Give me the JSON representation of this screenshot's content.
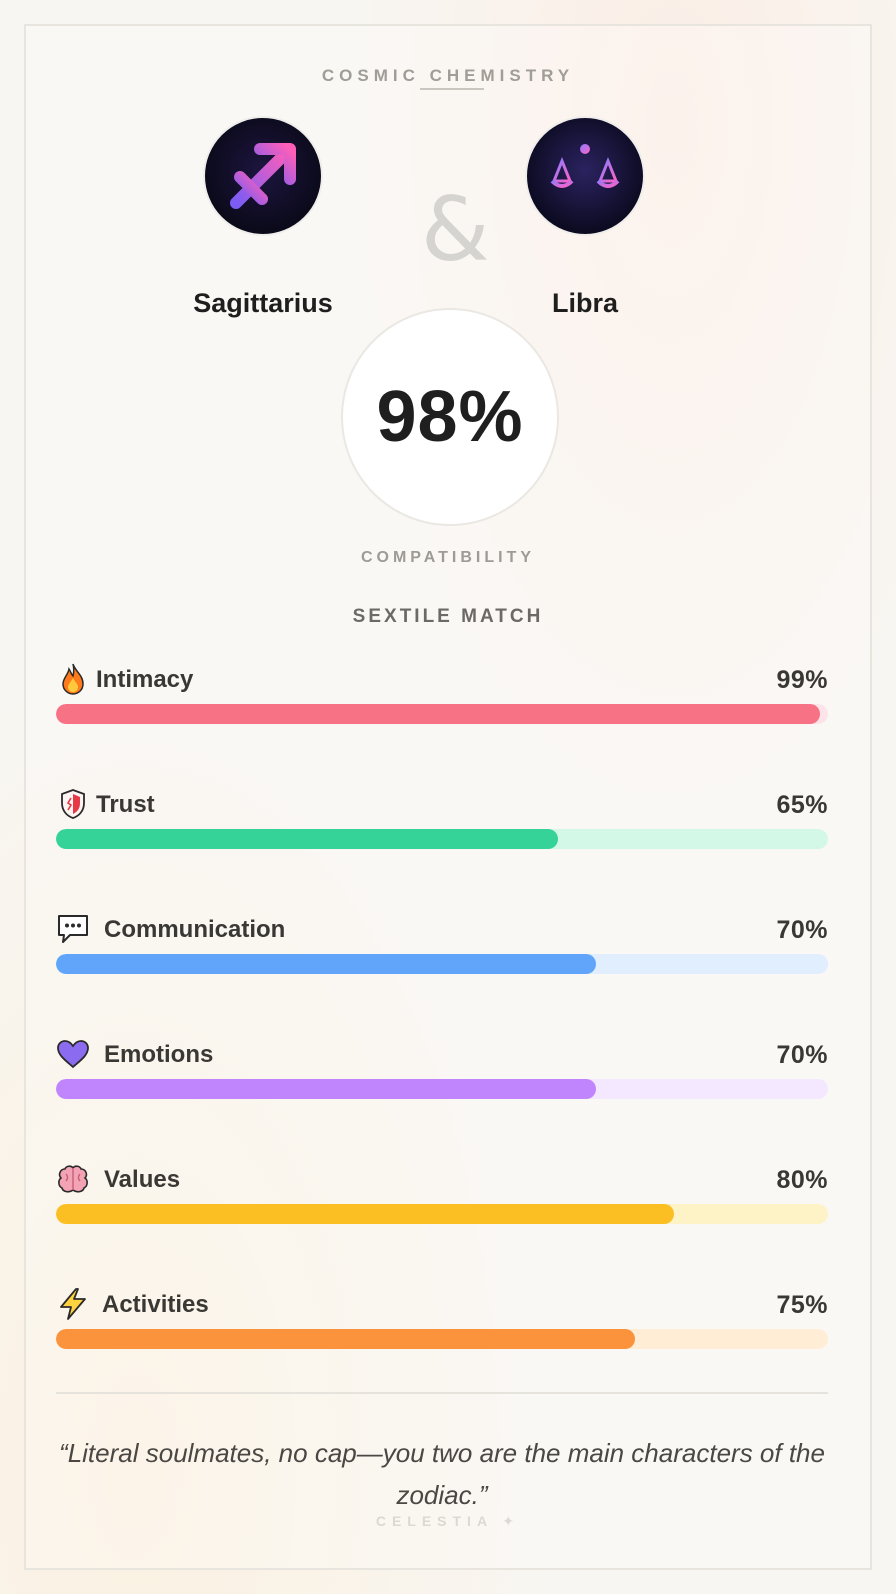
{
  "header": {
    "title": "COSMIC CHEMISTRY"
  },
  "pair": {
    "left_sign": {
      "name": "Sagittarius",
      "icon": "sagittarius-arrow-icon"
    },
    "joiner": "&",
    "right_sign": {
      "name": "Libra",
      "icon": "libra-scales-icon"
    }
  },
  "score": {
    "value": "98%",
    "label": "COMPATIBILITY",
    "match_type": "SEXTILE MATCH"
  },
  "metrics": [
    {
      "label": "Intimacy",
      "value_text": "99%",
      "value": 99,
      "icon": "fire-icon",
      "color": "#f87286",
      "track_color": "#fde4e8"
    },
    {
      "label": "Trust",
      "value_text": "65%",
      "value": 65,
      "icon": "shield-icon",
      "color": "#36d399",
      "track_color": "#d3f8e8"
    },
    {
      "label": "Communication",
      "value_text": "70%",
      "value": 70,
      "icon": "speech-bubble-icon",
      "color": "#60a5fa",
      "track_color": "#e0eefe"
    },
    {
      "label": "Emotions",
      "value_text": "70%",
      "value": 70,
      "icon": "purple-heart-icon",
      "color": "#c084fc",
      "track_color": "#f3e8ff"
    },
    {
      "label": "Values",
      "value_text": "80%",
      "value": 80,
      "icon": "brain-icon",
      "color": "#fbbf24",
      "track_color": "#fef3c7"
    },
    {
      "label": "Activities",
      "value_text": "75%",
      "value": 75,
      "icon": "lightning-icon",
      "color": "#fb923c",
      "track_color": "#ffedd5"
    }
  ],
  "quote": "“Literal soulmates, no cap—you two are the main characters of the zodiac.”",
  "brand": "CELESTIA ✦",
  "colors": {
    "background": "#f8f6f2",
    "text": "#2a2a2a",
    "muted": "#a09c96"
  }
}
